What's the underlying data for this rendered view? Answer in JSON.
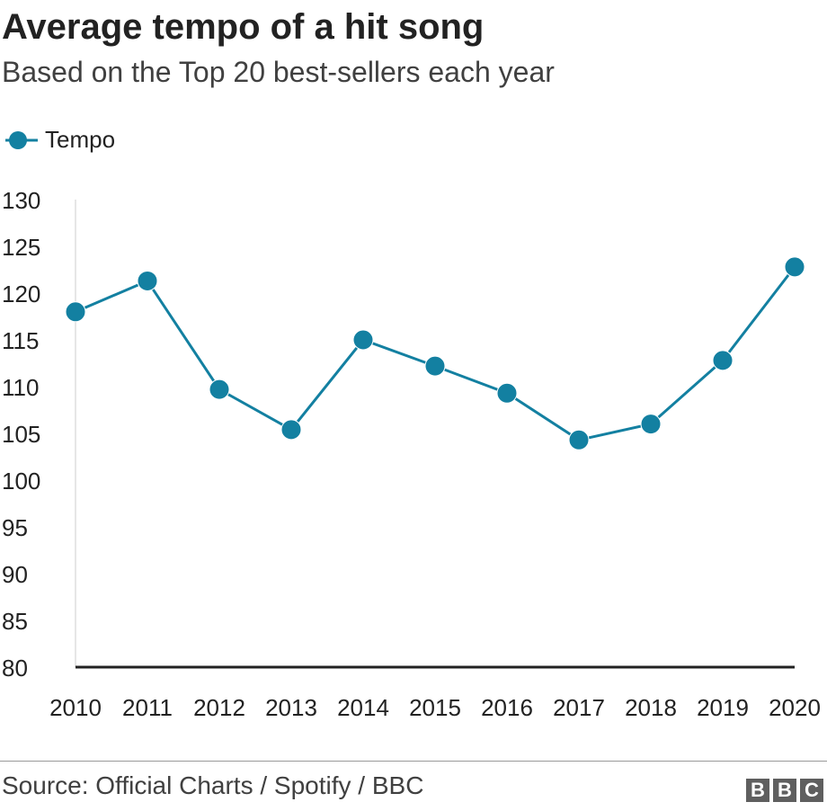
{
  "chart_data": {
    "type": "line",
    "title": "Average tempo of a hit song",
    "subtitle": "Based on the Top 20 best-sellers each year",
    "legend": [
      "Tempo"
    ],
    "legend_placement": "top-left",
    "categories": [
      "2010",
      "2011",
      "2012",
      "2013",
      "2014",
      "2015",
      "2016",
      "2017",
      "2018",
      "2019",
      "2020"
    ],
    "series": [
      {
        "name": "Tempo",
        "values": [
          118.0,
          121.3,
          109.7,
          105.4,
          115.0,
          112.2,
          109.3,
          104.3,
          106.0,
          112.8,
          122.8
        ]
      }
    ],
    "yticks": [
      130,
      125,
      120,
      115,
      110,
      105,
      100,
      95,
      90,
      85,
      80
    ],
    "ylim": [
      80,
      130
    ],
    "xlabel": "",
    "ylabel": "",
    "color": "#1380a1"
  },
  "footer": {
    "source": "Source: Official Charts / Spotify / BBC",
    "logo": [
      "B",
      "B",
      "C"
    ]
  }
}
